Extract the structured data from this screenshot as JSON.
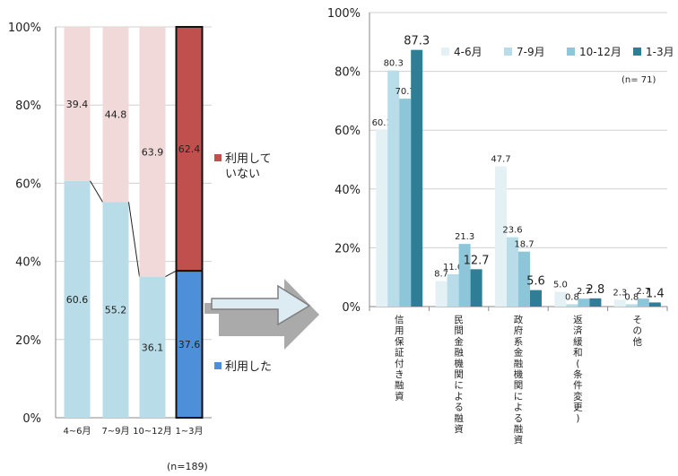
{
  "chart_data": [
    {
      "type": "bar",
      "stacked": true,
      "percent": true,
      "categories": [
        "4~6月",
        "7~9月",
        "10~12月",
        "1~3月"
      ],
      "ylim": [
        0,
        100
      ],
      "yticks": [
        "0%",
        "20%",
        "40%",
        "60%",
        "80%",
        "100%"
      ],
      "series": [
        {
          "name": "利用した",
          "values": [
            60.6,
            55.2,
            36.1,
            37.6
          ],
          "colors": [
            "#b8dde8",
            "#b8dde8",
            "#b8dde8",
            "#4d8fd8"
          ]
        },
        {
          "name": "利用していない",
          "values": [
            39.4,
            44.8,
            63.9,
            62.4
          ],
          "colors": [
            "#f1d9d9",
            "#f1d9d9",
            "#f1d9d9",
            "#c0504d"
          ]
        }
      ],
      "legend": [
        {
          "label": "利用して\nいない",
          "color": "#c0504d"
        },
        {
          "label": "利用した",
          "color": "#4d8fd8"
        }
      ],
      "note": "(n=189)",
      "grid": true
    },
    {
      "type": "bar",
      "categories": [
        "信用保証付き融資",
        "民間金融機関による融資",
        "政府系金融機関による融資",
        "返済緩和(条件変更)",
        "その他"
      ],
      "ylim": [
        0,
        100
      ],
      "yticks": [
        "0%",
        "20%",
        "40%",
        "60%",
        "80%",
        "100%"
      ],
      "series": [
        {
          "name": "4-6月",
          "color": "#e3f1f5",
          "values": [
            60.1,
            8.7,
            47.7,
            5.0,
            2.3
          ]
        },
        {
          "name": "7-9月",
          "color": "#b8dde8",
          "values": [
            80.3,
            11.0,
            23.6,
            0.8,
            0.8
          ]
        },
        {
          "name": "10-12月",
          "color": "#8cc6d8",
          "values": [
            70.7,
            21.3,
            18.7,
            2.7,
            2.7
          ]
        },
        {
          "name": "1-3月",
          "color": "#2e7f96",
          "values": [
            87.3,
            12.7,
            5.6,
            2.8,
            1.4
          ]
        }
      ],
      "value_labels": [
        [
          "60.1",
          "8.7",
          "47.7",
          "5.0",
          "2.3"
        ],
        [
          "80.3",
          "11.0",
          "23.6",
          "0.8",
          "0.8"
        ],
        [
          "70.7",
          "21.3",
          "18.7",
          "2.7",
          "2.7"
        ],
        [
          "87.3",
          "12.7",
          "5.6",
          "2.8",
          "1.4"
        ]
      ],
      "legend_position": "top-right",
      "note": "(n= 71)",
      "grid": true
    }
  ]
}
